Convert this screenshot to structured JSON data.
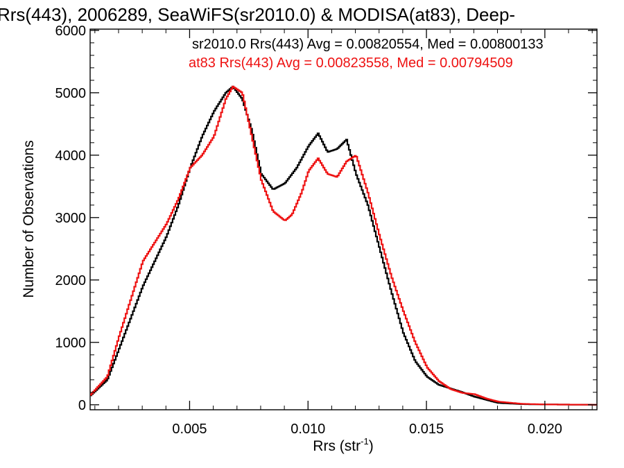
{
  "chart_data": {
    "type": "line",
    "title": "Rrs(443), 2006289, SeaWiFS(sr2010.0) & MODISA(at83), Deep-",
    "xlabel": "Rrs (str",
    "xlabel_sup": "-1",
    "xlabel_end": ")",
    "ylabel": "Number of Observations",
    "xlim": [
      0.0008,
      0.0222
    ],
    "ylim": [
      -80,
      6020
    ],
    "xticks": [
      0.005,
      0.01,
      0.015,
      0.02
    ],
    "xtick_labels": [
      "0.005",
      "0.010",
      "0.015",
      "0.020"
    ],
    "yticks": [
      0,
      1000,
      2000,
      3000,
      4000,
      5000,
      6000
    ],
    "ytick_labels": [
      "0",
      "1000",
      "2000",
      "3000",
      "4000",
      "5000",
      "6000"
    ],
    "grid": false,
    "legend_position": "top-right",
    "series": [
      {
        "name": "sr2010.0",
        "color": "#000000",
        "legend": "sr2010.0 Rrs(443) Avg = 0.00820554, Med = 0.00800133",
        "x": [
          0.0008,
          0.0015,
          0.002,
          0.0025,
          0.003,
          0.0035,
          0.004,
          0.0045,
          0.005,
          0.0055,
          0.006,
          0.0065,
          0.0068,
          0.0072,
          0.0076,
          0.008,
          0.0085,
          0.009,
          0.0095,
          0.01,
          0.0104,
          0.0108,
          0.0112,
          0.0116,
          0.012,
          0.0125,
          0.013,
          0.0135,
          0.014,
          0.0145,
          0.015,
          0.0155,
          0.016,
          0.0165,
          0.017,
          0.0175,
          0.018,
          0.019,
          0.02,
          0.0222
        ],
        "y": [
          150,
          400,
          900,
          1400,
          1900,
          2300,
          2700,
          3200,
          3800,
          4300,
          4700,
          5000,
          5100,
          4900,
          4400,
          3700,
          3450,
          3550,
          3800,
          4150,
          4350,
          4050,
          4100,
          4250,
          3700,
          3200,
          2500,
          1800,
          1150,
          700,
          450,
          320,
          260,
          200,
          130,
          80,
          30,
          10,
          5,
          0
        ]
      },
      {
        "name": "at83",
        "color": "#ee1111",
        "legend": "at83 Rrs(443) Avg = 0.00823558, Med = 0.00794509",
        "x": [
          0.0008,
          0.0015,
          0.002,
          0.0025,
          0.003,
          0.0035,
          0.004,
          0.0045,
          0.005,
          0.0055,
          0.006,
          0.0065,
          0.0068,
          0.0072,
          0.0076,
          0.008,
          0.0085,
          0.009,
          0.0093,
          0.0097,
          0.01,
          0.0104,
          0.0108,
          0.0112,
          0.0116,
          0.012,
          0.0125,
          0.013,
          0.0135,
          0.014,
          0.0145,
          0.015,
          0.0155,
          0.016,
          0.0165,
          0.017,
          0.0175,
          0.018,
          0.019,
          0.02,
          0.0222
        ],
        "y": [
          160,
          450,
          1100,
          1700,
          2300,
          2600,
          2900,
          3300,
          3800,
          4000,
          4300,
          4900,
          5100,
          5000,
          4300,
          3600,
          3100,
          2950,
          3050,
          3400,
          3750,
          3950,
          3700,
          3650,
          3900,
          4000,
          3400,
          2700,
          2050,
          1500,
          1000,
          600,
          380,
          250,
          190,
          170,
          100,
          50,
          15,
          5,
          0
        ]
      }
    ]
  }
}
